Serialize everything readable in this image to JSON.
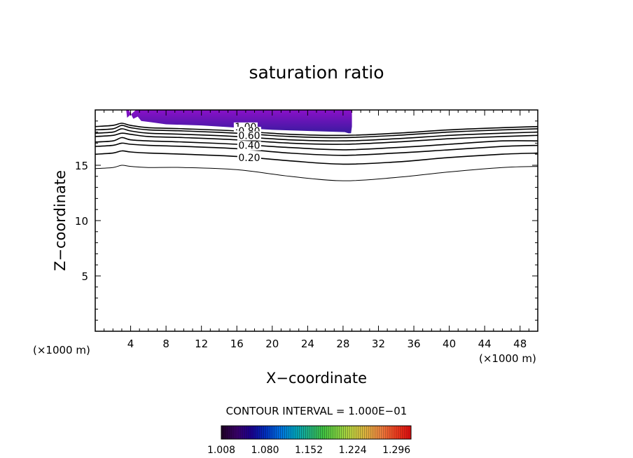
{
  "chart_data": {
    "type": "contour",
    "title": "saturation ratio",
    "xlabel": "X−coordinate",
    "ylabel": "Z−coordinate",
    "x_unit_left": "(×1000 m)",
    "x_unit_right": "(×1000 m)",
    "xlim": [
      0,
      50
    ],
    "ylim": [
      0,
      20
    ],
    "x_ticks": [
      4,
      8,
      12,
      16,
      20,
      24,
      28,
      32,
      36,
      40,
      44,
      48
    ],
    "x_tick_labels": [
      "4",
      "8",
      "12",
      "16",
      "20",
      "24",
      "28",
      "32",
      "36",
      "40",
      "44",
      "48"
    ],
    "y_ticks": [
      5,
      10,
      15
    ],
    "y_tick_labels": [
      "5",
      "10",
      "15"
    ],
    "grid": false,
    "contour_interval_text": "CONTOUR INTERVAL = 1.000E−01",
    "colorbar": {
      "min": 1.008,
      "max": 1.32,
      "tick_labels": [
        "1.008",
        "1.080",
        "1.152",
        "1.224",
        "1.296"
      ],
      "colors": [
        "#20002a",
        "#3a006a",
        "#1a0090",
        "#0030c0",
        "#0070e0",
        "#00a0c0",
        "#20b080",
        "#40c040",
        "#80d040",
        "#c0d040",
        "#e0b040",
        "#f08040",
        "#f04020",
        "#e01010"
      ]
    },
    "contour_lines": [
      {
        "level": 0.1,
        "x": [
          0,
          2,
          3,
          4,
          6,
          10,
          16,
          22,
          28,
          34,
          40,
          46,
          50
        ],
        "y": [
          14.7,
          14.8,
          15.0,
          14.9,
          14.8,
          14.8,
          14.6,
          14.0,
          13.6,
          13.9,
          14.4,
          14.8,
          14.9
        ]
      },
      {
        "level": 0.2,
        "x": [
          0,
          2,
          3,
          4,
          6,
          10,
          16,
          22,
          28,
          34,
          40,
          46,
          50
        ],
        "y": [
          16.0,
          16.1,
          16.3,
          16.2,
          16.1,
          16.0,
          15.8,
          15.4,
          15.1,
          15.3,
          15.7,
          16.0,
          16.1
        ]
      },
      {
        "level": 0.3,
        "x": [
          0,
          2,
          3,
          4,
          6,
          10,
          16,
          22,
          28,
          34,
          40,
          46,
          50
        ],
        "y": [
          16.7,
          16.8,
          17.0,
          16.9,
          16.8,
          16.7,
          16.5,
          16.1,
          15.9,
          16.1,
          16.4,
          16.7,
          16.8
        ]
      },
      {
        "level": 0.4,
        "x": [
          0,
          2,
          3,
          4,
          6,
          10,
          16,
          22,
          28,
          34,
          40,
          46,
          50
        ],
        "y": [
          17.1,
          17.2,
          17.5,
          17.3,
          17.2,
          17.1,
          16.9,
          16.6,
          16.4,
          16.6,
          16.9,
          17.2,
          17.2
        ]
      },
      {
        "level": 0.6,
        "x": [
          0,
          2,
          3,
          4,
          6,
          10,
          16,
          22,
          28,
          34,
          40,
          46,
          50
        ],
        "y": [
          17.6,
          17.7,
          17.9,
          17.8,
          17.6,
          17.5,
          17.3,
          17.0,
          16.9,
          17.1,
          17.4,
          17.6,
          17.7
        ]
      },
      {
        "level": 0.8,
        "x": [
          0,
          2,
          3,
          4,
          6,
          10,
          16,
          22,
          28,
          34,
          40,
          46,
          50
        ],
        "y": [
          17.9,
          18.0,
          18.3,
          18.1,
          17.9,
          17.8,
          17.6,
          17.3,
          17.2,
          17.4,
          17.7,
          17.9,
          18.0
        ]
      },
      {
        "level": 1.0,
        "x": [
          0,
          2,
          3,
          4,
          6,
          10,
          16,
          22,
          28,
          34,
          40,
          46,
          50
        ],
        "y": [
          18.2,
          18.3,
          18.6,
          18.4,
          18.2,
          18.1,
          17.9,
          17.6,
          17.5,
          17.7,
          18.0,
          18.2,
          18.3
        ]
      },
      {
        "level": 1.0,
        "x": [
          0,
          2,
          3,
          4,
          6,
          10,
          16,
          22,
          28,
          34,
          40,
          46,
          50
        ],
        "y": [
          18.5,
          18.6,
          18.8,
          18.6,
          18.4,
          18.3,
          18.1,
          17.8,
          17.7,
          17.9,
          18.2,
          18.4,
          18.5
        ]
      }
    ],
    "contour_labels": [
      {
        "text": "1.00",
        "x": 17.0,
        "y": 18.3
      },
      {
        "text": "0.80",
        "x": 17.4,
        "y": 17.9
      },
      {
        "text": "0.60",
        "x": 17.4,
        "y": 17.5
      },
      {
        "text": "0.40",
        "x": 17.4,
        "y": 16.6
      },
      {
        "text": "0.20",
        "x": 17.4,
        "y": 15.5
      }
    ],
    "filled_region": {
      "description_color_top": "#7a18b0",
      "boundary_x": [
        2.4,
        3.8,
        4.3,
        4.8,
        5.2,
        6.2,
        8.0,
        12.0,
        16.0,
        20.0,
        24.0,
        28.2,
        28.6,
        28.9,
        29.0,
        29.0,
        5.3,
        5.2,
        4.6,
        3.6,
        3.5,
        2.4
      ],
      "boundary_y": [
        20,
        20,
        19.2,
        19.4,
        19.0,
        18.9,
        18.7,
        18.6,
        18.4,
        18.2,
        18.1,
        18.0,
        17.9,
        17.9,
        18.5,
        20,
        20,
        20,
        20,
        19.3,
        20,
        20
      ]
    }
  }
}
